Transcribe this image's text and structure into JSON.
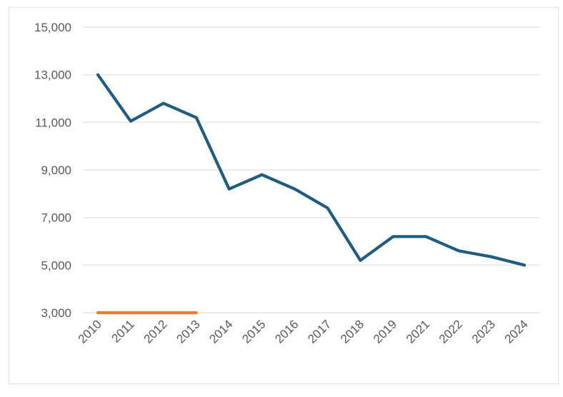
{
  "chart_data": {
    "type": "line",
    "title": "",
    "xlabel": "",
    "ylabel": "",
    "categories": [
      "2010",
      "2011",
      "2012",
      "2013",
      "2014",
      "2015",
      "2016",
      "2017",
      "2018",
      "2019",
      "2021",
      "2022",
      "2023",
      "2024"
    ],
    "ylim": [
      3000,
      15000
    ],
    "yticks": [
      3000,
      5000,
      7000,
      9000,
      11000,
      13000,
      15000
    ],
    "ytick_labels": [
      "3,000",
      "5,000",
      "7,000",
      "9,000",
      "11,000",
      "13,000",
      "15,000"
    ],
    "grid": true,
    "legend": "none",
    "series": [
      {
        "color": "#1f5c7f",
        "values": [
          13000,
          11050,
          11800,
          11200,
          8200,
          8800,
          8200,
          7400,
          5200,
          6200,
          6200,
          5600,
          5350,
          5000
        ]
      },
      {
        "color": "#ed7d31",
        "values": [
          3000,
          3000,
          3000,
          3000,
          null,
          null,
          null,
          null,
          null,
          null,
          null,
          null,
          null,
          null
        ]
      }
    ]
  }
}
